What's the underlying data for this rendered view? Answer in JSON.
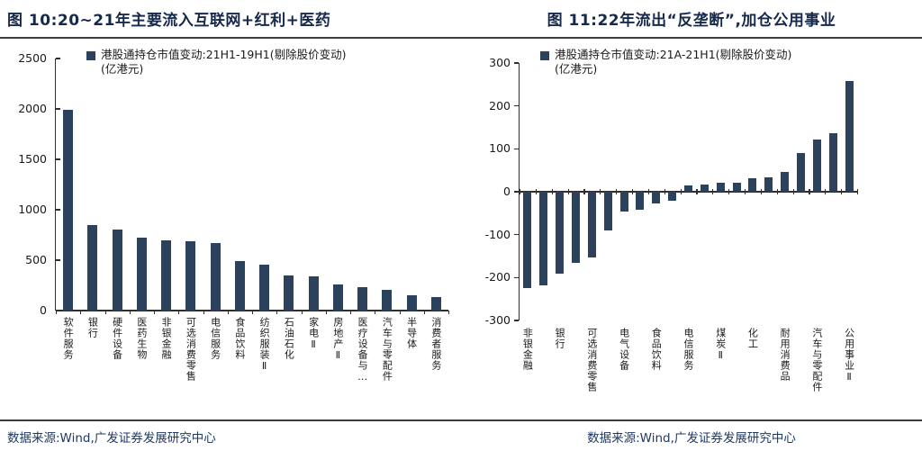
{
  "sources": {
    "left": "数据来源:Wind,广发证券发展研究中心",
    "right": "数据来源:Wind,广发证券发展研究中心"
  },
  "colors": {
    "bar": "#2c415c",
    "title": "#16294d",
    "rule": "#3d3d3d",
    "axis": "#2f2f2f",
    "source_text": "#1f3a66"
  },
  "chart_data": [
    {
      "type": "bar",
      "title": "图 10:20~21年主要流入互联网+红利+医药",
      "legend": "港股通持仓市值变动:21H1-19H1(剔除股价变动)",
      "unit": "(亿港元)",
      "categories": [
        "软件服务",
        "银行",
        "硬件设备",
        "医药生物",
        "非银金融",
        "可选消费零售",
        "电信服务",
        "食品饮料",
        "纺织服装Ⅱ",
        "石油石化",
        "家电Ⅱ",
        "房地产Ⅱ",
        "医疗设备与…",
        "汽车与零配件",
        "半导体",
        "消费者服务"
      ],
      "values": [
        1990,
        845,
        805,
        725,
        700,
        685,
        670,
        490,
        455,
        350,
        335,
        260,
        230,
        205,
        150,
        130
      ],
      "xlabel": "",
      "ylabel": "",
      "ylim": [
        0,
        2500
      ],
      "ystep": 500,
      "grid": false,
      "legend_position": "top"
    },
    {
      "type": "bar",
      "title": "图 11:22年流出“反垄断”,加仓公用事业",
      "legend": "港股通持仓市值变动:21A-21H1(剔除股价变动)",
      "unit": "(亿港元)",
      "categories": [
        "非银金融",
        "",
        "银行",
        "",
        "可选消费零售",
        "",
        "电气设备",
        "",
        "食品饮料",
        "",
        "电信服务",
        "",
        "煤炭Ⅱ",
        "",
        "化工",
        "",
        "耐用消费品",
        "",
        "汽车与零配件",
        "",
        "公用事业Ⅱ"
      ],
      "values": [
        -225,
        -218,
        -190,
        -165,
        -153,
        -90,
        -47,
        -41,
        -27,
        -22,
        14,
        16,
        21,
        22,
        32,
        34,
        46,
        91,
        122,
        137,
        258
      ],
      "xlabel": "",
      "ylabel": "",
      "ylim": [
        -300,
        300
      ],
      "ystep": 100,
      "grid": false,
      "legend_position": "top"
    }
  ]
}
